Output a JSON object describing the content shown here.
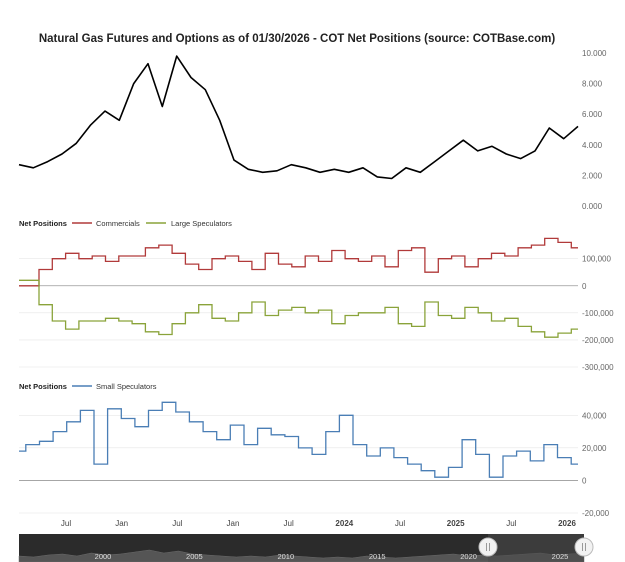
{
  "title": "Natural Gas Futures and Options as of 01/30/2026 - COT Net Positions (source: COTBase.com)",
  "colors": {
    "price": "#000000",
    "commercials": "#b13a3a",
    "large_speculators": "#8aa33a",
    "small_speculators": "#4a7eb5",
    "grid": "#e6e6e6",
    "zero": "#999999",
    "navigator_bg": "#2b2b2b",
    "navigator_mask": "#4a4a4a"
  },
  "x_axis": {
    "ticks": [
      {
        "label": "Jul",
        "bold": false
      },
      {
        "label": "Jan",
        "bold": false
      },
      {
        "label": "Jul",
        "bold": false
      },
      {
        "label": "Jan",
        "bold": false
      },
      {
        "label": "Jul",
        "bold": false
      },
      {
        "label": "2024",
        "bold": true
      },
      {
        "label": "Jul",
        "bold": false
      },
      {
        "label": "2025",
        "bold": true
      },
      {
        "label": "Jul",
        "bold": false
      },
      {
        "label": "2026",
        "bold": true
      }
    ]
  },
  "legends": {
    "panel2_title": "Net Positions",
    "panel2_items": [
      "Commercials",
      "Large Speculators"
    ],
    "panel3_title": "Net Positions",
    "panel3_items": [
      "Small Speculators"
    ]
  },
  "navigator": {
    "labels": [
      "2000",
      "2005",
      "2010",
      "2015",
      "2020",
      "2025"
    ]
  },
  "chart_data": [
    {
      "type": "line",
      "series": [
        {
          "name": "",
          "values": [
            2.7,
            2.5,
            2.9,
            3.4,
            4.1,
            5.3,
            6.2,
            5.6,
            8.0,
            9.3,
            6.5,
            9.8,
            8.4,
            7.6,
            5.6,
            3.0,
            2.4,
            2.2,
            2.3,
            2.7,
            2.5,
            2.2,
            2.4,
            2.2,
            2.5,
            1.9,
            1.8,
            2.5,
            2.2,
            2.9,
            3.6,
            4.3,
            3.6,
            3.9,
            3.4,
            3.1,
            3.6,
            5.1,
            4.4,
            5.2
          ]
        }
      ],
      "y_ticks": [
        "0.000",
        "2.000",
        "4.000",
        "6.000",
        "8.000",
        "10.000"
      ],
      "ylim": [
        0,
        10
      ]
    },
    {
      "type": "line",
      "series": [
        {
          "name": "Commercials",
          "values": [
            0,
            0,
            60000,
            100000,
            120000,
            100000,
            110000,
            90000,
            110000,
            110000,
            140000,
            150000,
            120000,
            80000,
            60000,
            100000,
            110000,
            90000,
            60000,
            120000,
            80000,
            70000,
            110000,
            90000,
            130000,
            100000,
            90000,
            110000,
            70000,
            130000,
            140000,
            50000,
            100000,
            110000,
            70000,
            100000,
            120000,
            110000,
            140000,
            150000,
            175000,
            160000,
            140000
          ]
        },
        {
          "name": "Large Speculators",
          "values": [
            20000,
            20000,
            -70000,
            -130000,
            -160000,
            -130000,
            -130000,
            -120000,
            -130000,
            -140000,
            -170000,
            -180000,
            -140000,
            -100000,
            -70000,
            -120000,
            -130000,
            -100000,
            -60000,
            -110000,
            -90000,
            -80000,
            -100000,
            -90000,
            -140000,
            -110000,
            -100000,
            -100000,
            -80000,
            -140000,
            -150000,
            -60000,
            -110000,
            -120000,
            -80000,
            -100000,
            -130000,
            -120000,
            -150000,
            -170000,
            -190000,
            -175000,
            -160000
          ]
        }
      ],
      "y_ticks": [
        "-300,000",
        "-200,000",
        "-100,000",
        "0",
        "100,000"
      ],
      "ylim": [
        -300000,
        180000
      ]
    },
    {
      "type": "line",
      "series": [
        {
          "name": "Small Speculators",
          "values": [
            18000,
            22000,
            24000,
            30000,
            36000,
            43000,
            10000,
            44000,
            38000,
            33000,
            43000,
            48000,
            42000,
            36000,
            30000,
            25000,
            34000,
            22000,
            32000,
            28000,
            27000,
            20000,
            16000,
            30000,
            40000,
            22000,
            15000,
            20000,
            14000,
            10000,
            6000,
            2000,
            8000,
            25000,
            16000,
            2000,
            15000,
            18000,
            12000,
            22000,
            14000,
            10000
          ]
        }
      ],
      "y_ticks": [
        "-20,000",
        "0",
        "20,000",
        "40,000"
      ],
      "ylim": [
        -20000,
        50000
      ]
    }
  ]
}
